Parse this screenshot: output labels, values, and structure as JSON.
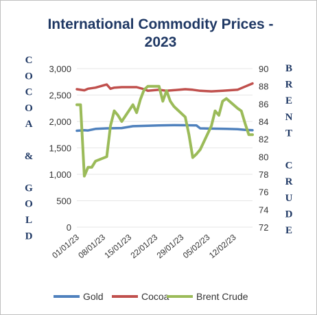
{
  "chart_data": {
    "type": "line",
    "title_lines": [
      "International Commodity Prices -",
      "2023"
    ],
    "left_axis": {
      "label": "COCOA & GOLD",
      "label_glyphs": [
        "C",
        "O",
        "C",
        "O",
        "A",
        "",
        "&",
        "",
        "G",
        "O",
        "L",
        "D"
      ],
      "ylim": [
        0,
        3000
      ],
      "ticks": [
        "0",
        "500",
        "1,000",
        "1,500",
        "2,000",
        "2,500",
        "3,000"
      ]
    },
    "right_axis": {
      "label": "BRENT CRUDE",
      "label_glyphs": [
        "B",
        "R",
        "E",
        "N",
        "T",
        "",
        "C",
        "R",
        "U",
        "D",
        "E"
      ],
      "ylim": [
        72,
        90
      ],
      "ticks": [
        "72",
        "74",
        "76",
        "78",
        "80",
        "82",
        "84",
        "86",
        "88",
        "90"
      ]
    },
    "x_tick_labels": [
      "01/01/23",
      "08/01/23",
      "15/01/23",
      "22/01/23",
      "29/01/23",
      "05/02/23",
      "12/02/23"
    ],
    "x_range": [
      "01/01/23",
      "17/02/23"
    ],
    "legend_position": "bottom",
    "series": [
      {
        "name": "Gold",
        "color": "#4f81bd",
        "axis": "left",
        "x": [
          "01/01/23",
          "02/01/23",
          "03/01/23",
          "04/01/23",
          "05/01/23",
          "06/01/23",
          "09/01/23",
          "13/01/23",
          "16/01/23",
          "20/01/23",
          "23/01/23",
          "27/01/23",
          "30/01/23",
          "02/02/23",
          "03/02/23",
          "06/02/23",
          "10/02/23",
          "13/02/23",
          "15/02/23",
          "17/02/23"
        ],
        "values": [
          1825,
          1830,
          1835,
          1830,
          1845,
          1860,
          1870,
          1875,
          1910,
          1920,
          1925,
          1930,
          1928,
          1925,
          1870,
          1865,
          1860,
          1855,
          1840,
          1835
        ]
      },
      {
        "name": "Cocoa",
        "color": "#c0504d",
        "axis": "left",
        "x": [
          "01/01/23",
          "03/01/23",
          "04/01/23",
          "06/01/23",
          "09/01/23",
          "10/01/23",
          "11/01/23",
          "13/01/23",
          "17/01/23",
          "19/01/23",
          "20/01/23",
          "23/01/23",
          "25/01/23",
          "30/01/23",
          "01/02/23",
          "03/02/23",
          "06/02/23",
          "09/02/23",
          "13/02/23",
          "15/02/23",
          "17/02/23"
        ],
        "values": [
          2610,
          2590,
          2620,
          2640,
          2700,
          2620,
          2640,
          2650,
          2650,
          2610,
          2580,
          2600,
          2580,
          2610,
          2600,
          2580,
          2570,
          2580,
          2600,
          2660,
          2720
        ]
      },
      {
        "name": "Brent Crude",
        "color": "#9bbb59",
        "axis": "right",
        "x": [
          "01/01/23",
          "02/01/23",
          "03/01/23",
          "04/01/23",
          "05/01/23",
          "06/01/23",
          "09/01/23",
          "10/01/23",
          "11/01/23",
          "12/01/23",
          "13/01/23",
          "16/01/23",
          "17/01/23",
          "18/01/23",
          "19/01/23",
          "20/01/23",
          "23/01/23",
          "24/01/23",
          "25/01/23",
          "26/01/23",
          "27/01/23",
          "30/01/23",
          "31/01/23",
          "01/02/23",
          "02/02/23",
          "03/02/23",
          "06/02/23",
          "07/02/23",
          "08/02/23",
          "09/02/23",
          "10/02/23",
          "13/02/23",
          "14/02/23",
          "15/02/23",
          "16/02/23",
          "17/02/23"
        ],
        "values": [
          85.9,
          85.9,
          77.8,
          78.8,
          78.8,
          79.5,
          80.0,
          83.5,
          85.2,
          84.7,
          84.0,
          85.9,
          85.0,
          86.5,
          87.6,
          88.0,
          88.0,
          86.3,
          87.5,
          86.3,
          85.7,
          84.5,
          82.5,
          79.9,
          80.3,
          80.8,
          83.5,
          85.2,
          84.7,
          86.3,
          86.6,
          85.5,
          85.2,
          83.8,
          82.5,
          82.5
        ]
      }
    ]
  }
}
